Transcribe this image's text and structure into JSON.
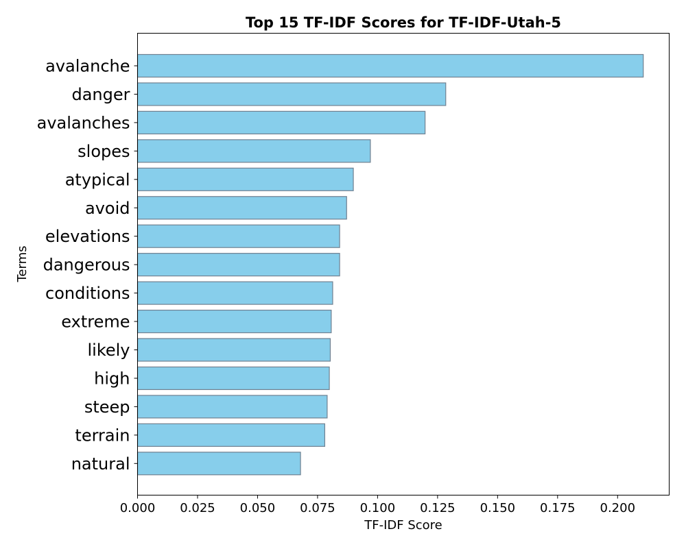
{
  "chart_data": {
    "type": "bar",
    "orientation": "horizontal",
    "title": "Top 15 TF-IDF Scores for TF-IDF-Utah-5",
    "xlabel": "TF-IDF Score",
    "ylabel": "Terms",
    "xlim": [
      0,
      0.2215
    ],
    "xticks": [
      "0.000",
      "0.025",
      "0.050",
      "0.075",
      "0.100",
      "0.125",
      "0.150",
      "0.175",
      "0.200"
    ],
    "grid": false,
    "bar_color": "#87ceeb",
    "bar_edge_color": "#708090",
    "categories": [
      "avalanche",
      "danger",
      "avalanches",
      "slopes",
      "atypical",
      "avoid",
      "elevations",
      "dangerous",
      "conditions",
      "extreme",
      "likely",
      "high",
      "steep",
      "terrain",
      "natural"
    ],
    "values": [
      0.2107,
      0.1284,
      0.1198,
      0.097,
      0.0899,
      0.0871,
      0.0842,
      0.0842,
      0.0813,
      0.0807,
      0.0803,
      0.0799,
      0.079,
      0.078,
      0.0679
    ]
  }
}
